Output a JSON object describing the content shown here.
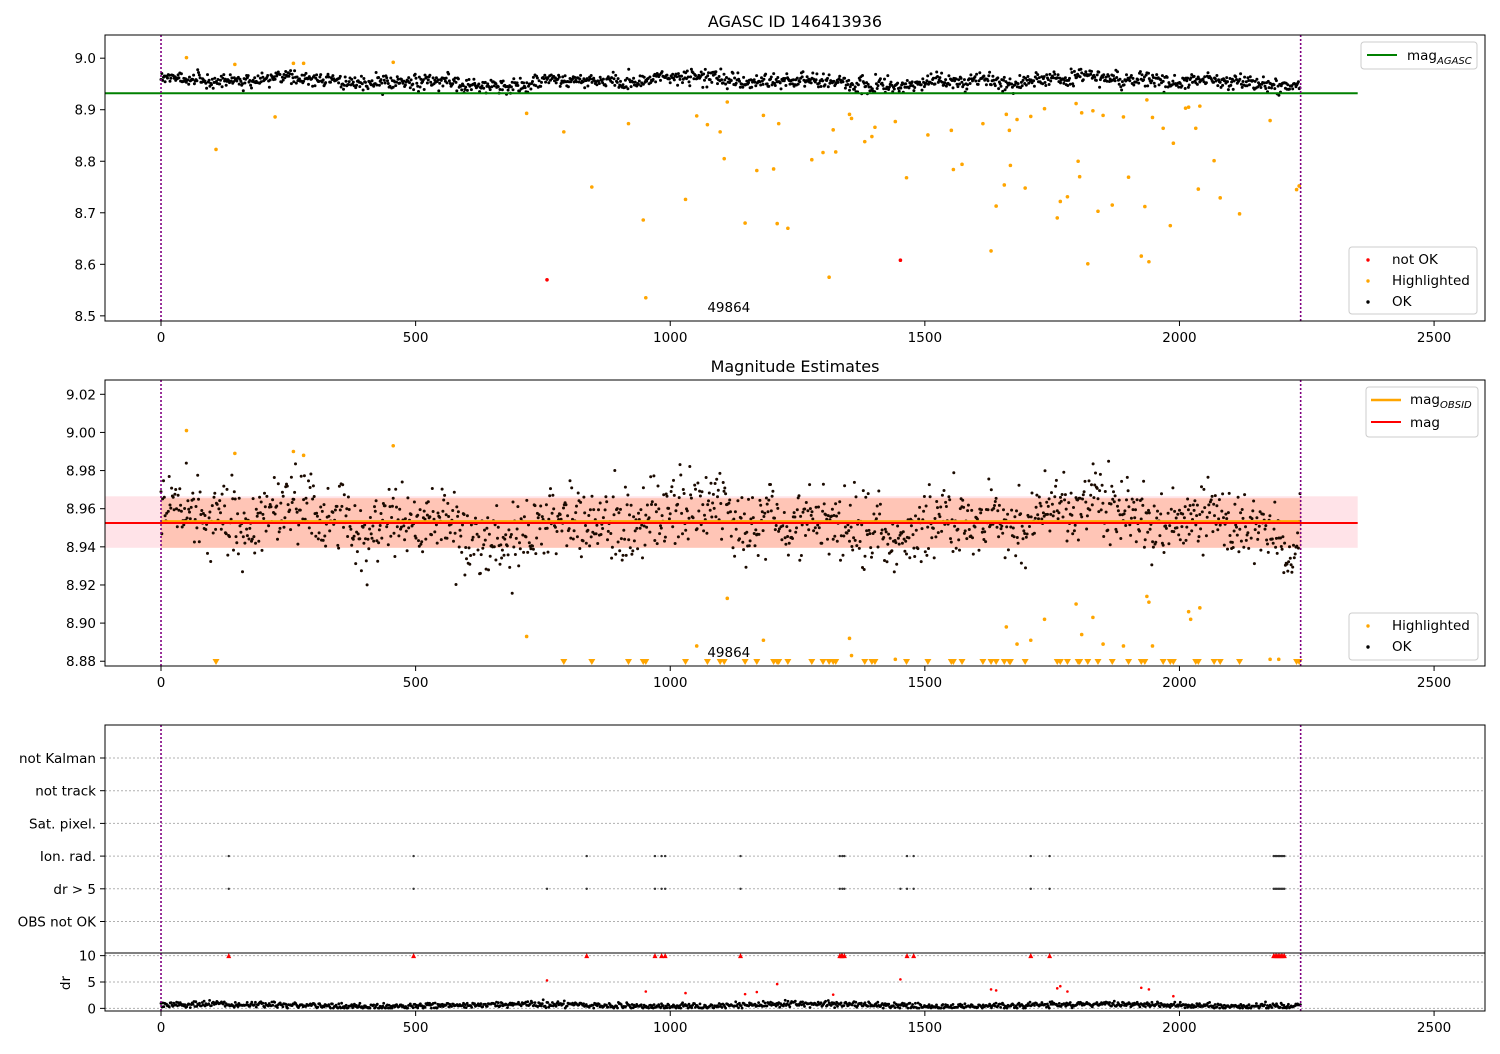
{
  "figure": {
    "top_title": "AGASC ID 146413936",
    "middle_title": "Magnitude Estimates",
    "obsid_label": "49864"
  },
  "colors": {
    "ok": "#000000",
    "highlighted": "#ffa500",
    "not_ok": "#ff0000",
    "mag_agasc": "#008000",
    "mag_obsid": "#ffa500",
    "mag": "#ff0000",
    "band_fill": "#ffc0cb",
    "band_inner": "#ffa07a",
    "boundary": "#800080"
  },
  "legends": {
    "top_lines": [
      {
        "key": "mag_agasc",
        "text": "mag",
        "sub": "AGASC"
      }
    ],
    "top_points": [
      {
        "key": "not_ok",
        "text": "not OK"
      },
      {
        "key": "highlighted",
        "text": "Highlighted"
      },
      {
        "key": "ok",
        "text": "OK"
      }
    ],
    "middle_lines": [
      {
        "key": "mag_obsid",
        "text": "mag",
        "sub": "OBSID"
      },
      {
        "key": "mag",
        "text": "mag",
        "sub": ""
      }
    ],
    "middle_points": [
      {
        "key": "highlighted",
        "text": "Highlighted"
      },
      {
        "key": "ok",
        "text": "OK"
      }
    ]
  },
  "chart_data": [
    {
      "type": "scatter",
      "title": "AGASC ID 146413936",
      "xlim": [
        -110,
        2600
      ],
      "ylim": [
        8.49,
        9.045
      ],
      "xticks": [
        0,
        500,
        1000,
        1500,
        2000,
        2500
      ],
      "yticks": [
        8.5,
        8.6,
        8.7,
        8.8,
        8.9,
        9.0
      ],
      "tick_decimals": 1,
      "obsid_boundaries": [
        0,
        2238
      ],
      "obsid_annotation": {
        "text": "49864",
        "x": 1115
      },
      "ok_band": {
        "range": [
          0,
          2238
        ],
        "center": 8.955,
        "amplitude": 0.015,
        "noise": 0.007
      },
      "reference_lines": [
        {
          "name": "mag_AGASC",
          "y": 8.932,
          "x": [
            -110,
            2350
          ],
          "color": "#008000"
        }
      ],
      "highlighted_points": [
        [
          50,
          9.001
        ],
        [
          108,
          8.823
        ],
        [
          145,
          8.988
        ],
        [
          224,
          8.886
        ],
        [
          260,
          8.99
        ],
        [
          280,
          8.99
        ],
        [
          456,
          8.992
        ],
        [
          718,
          8.893
        ],
        [
          791,
          8.857
        ],
        [
          846,
          8.75
        ],
        [
          918,
          8.873
        ],
        [
          947,
          8.686
        ],
        [
          952,
          8.535
        ],
        [
          1030,
          8.726
        ],
        [
          1052,
          8.888
        ],
        [
          1073,
          8.871
        ],
        [
          1098,
          8.857
        ],
        [
          1106,
          8.805
        ],
        [
          1112,
          8.915
        ],
        [
          1147,
          8.68
        ],
        [
          1170,
          8.782
        ],
        [
          1183,
          8.889
        ],
        [
          1203,
          8.785
        ],
        [
          1210,
          8.679
        ],
        [
          1213,
          8.873
        ],
        [
          1231,
          8.67
        ],
        [
          1278,
          8.803
        ],
        [
          1300,
          8.817
        ],
        [
          1312,
          8.575
        ],
        [
          1320,
          8.861
        ],
        [
          1325,
          8.818
        ],
        [
          1352,
          8.891
        ],
        [
          1356,
          8.883
        ],
        [
          1382,
          8.838
        ],
        [
          1396,
          8.848
        ],
        [
          1402,
          8.866
        ],
        [
          1442,
          8.877
        ],
        [
          1464,
          8.768
        ],
        [
          1506,
          8.851
        ],
        [
          1552,
          8.86
        ],
        [
          1556,
          8.784
        ],
        [
          1573,
          8.794
        ],
        [
          1614,
          8.873
        ],
        [
          1630,
          8.626
        ],
        [
          1640,
          8.713
        ],
        [
          1656,
          8.754
        ],
        [
          1660,
          8.891
        ],
        [
          1666,
          8.86
        ],
        [
          1668,
          8.792
        ],
        [
          1681,
          8.881
        ],
        [
          1697,
          8.748
        ],
        [
          1708,
          8.887
        ],
        [
          1735,
          8.902
        ],
        [
          1760,
          8.69
        ],
        [
          1766,
          8.722
        ],
        [
          1780,
          8.731
        ],
        [
          1797,
          8.912
        ],
        [
          1801,
          8.8
        ],
        [
          1804,
          8.77
        ],
        [
          1808,
          8.894
        ],
        [
          1820,
          8.601
        ],
        [
          1830,
          8.898
        ],
        [
          1840,
          8.703
        ],
        [
          1850,
          8.889
        ],
        [
          1868,
          8.715
        ],
        [
          1890,
          8.886
        ],
        [
          1900,
          8.769
        ],
        [
          1925,
          8.616
        ],
        [
          1932,
          8.712
        ],
        [
          1936,
          8.919
        ],
        [
          1940,
          8.605
        ],
        [
          1947,
          8.885
        ],
        [
          1968,
          8.864
        ],
        [
          1982,
          8.675
        ],
        [
          1988,
          8.835
        ],
        [
          2012,
          8.903
        ],
        [
          2018,
          8.905
        ],
        [
          2032,
          8.864
        ],
        [
          2037,
          8.746
        ],
        [
          2040,
          8.907
        ],
        [
          2068,
          8.801
        ],
        [
          2080,
          8.729
        ],
        [
          2118,
          8.698
        ],
        [
          2178,
          8.879
        ],
        [
          2230,
          8.745
        ],
        [
          2235,
          8.752
        ]
      ],
      "not_ok_points": [
        [
          758,
          8.57
        ],
        [
          1452,
          8.608
        ]
      ]
    },
    {
      "type": "scatter",
      "title": "Magnitude Estimates",
      "xlim": [
        -110,
        2600
      ],
      "ylim": [
        8.8775,
        9.0275
      ],
      "xticks": [
        0,
        500,
        1000,
        1500,
        2000,
        2500
      ],
      "yticks": [
        8.88,
        8.9,
        8.92,
        8.94,
        8.96,
        8.98,
        9.0,
        9.02
      ],
      "tick_decimals": 2,
      "obsid_boundaries": [
        0,
        2238
      ],
      "obsid_annotation": {
        "text": "49864",
        "x": 1115
      },
      "band": {
        "x": [
          -110,
          2350
        ],
        "outer": [
          8.9395,
          8.9665
        ],
        "inner": [
          8.9395,
          8.9655
        ]
      },
      "ok_band": {
        "range": [
          0,
          2238
        ],
        "center": 8.953,
        "amplitude": 0.015,
        "noise": 0.009
      },
      "reference_lines": [
        {
          "name": "mag_OBSID",
          "y": 8.9535,
          "x": [
            0,
            2238
          ],
          "color": "#ffa500"
        },
        {
          "name": "mag",
          "y": 8.9525,
          "x": [
            -110,
            2350
          ],
          "color": "#ff0000"
        }
      ],
      "highlighted_points": [
        [
          50,
          9.001
        ],
        [
          145,
          8.989
        ],
        [
          260,
          8.99
        ],
        [
          280,
          8.988
        ],
        [
          456,
          8.993
        ],
        [
          718,
          8.893
        ],
        [
          1052,
          8.888
        ],
        [
          1112,
          8.913
        ],
        [
          1183,
          8.891
        ],
        [
          1352,
          8.892
        ],
        [
          1356,
          8.883
        ],
        [
          1442,
          8.881
        ],
        [
          1660,
          8.898
        ],
        [
          1681,
          8.889
        ],
        [
          1708,
          8.891
        ],
        [
          1735,
          8.902
        ],
        [
          1797,
          8.91
        ],
        [
          1808,
          8.894
        ],
        [
          1830,
          8.903
        ],
        [
          1850,
          8.889
        ],
        [
          1890,
          8.888
        ],
        [
          1936,
          8.914
        ],
        [
          1940,
          8.911
        ],
        [
          1947,
          8.888
        ],
        [
          2018,
          8.906
        ],
        [
          2022,
          8.902
        ],
        [
          2040,
          8.908
        ],
        [
          2178,
          8.881
        ],
        [
          2195,
          8.881
        ]
      ],
      "clipped_highlighted_x": [
        108,
        791,
        846,
        918,
        947,
        952,
        1030,
        1073,
        1098,
        1106,
        1147,
        1170,
        1203,
        1210,
        1213,
        1231,
        1278,
        1300,
        1312,
        1320,
        1325,
        1382,
        1396,
        1402,
        1464,
        1506,
        1552,
        1556,
        1573,
        1614,
        1630,
        1640,
        1656,
        1666,
        1668,
        1697,
        1760,
        1766,
        1780,
        1801,
        1804,
        1820,
        1840,
        1868,
        1900,
        1925,
        1932,
        1968,
        1982,
        1988,
        2032,
        2037,
        2068,
        2080,
        2118,
        2230,
        2235
      ]
    },
    {
      "type": "scatter",
      "title": "",
      "xlim": [
        -110,
        2600
      ],
      "obsid_boundaries": [
        0,
        2238
      ],
      "category_rows": [
        "not Kalman",
        "not track",
        "Sat. pixel.",
        "Ion. rad.",
        "dr > 5",
        "OBS not OK"
      ],
      "flags": {
        "Ion. rad.": [
          133,
          496,
          836,
          970,
          983,
          990,
          1138,
          1333,
          1338,
          1342,
          1465,
          1478,
          1708,
          1745,
          2185,
          2188,
          2191,
          2194,
          2197,
          2200,
          2203,
          2206
        ],
        "dr > 5": [
          133,
          496,
          758,
          836,
          970,
          983,
          990,
          1138,
          1333,
          1338,
          1342,
          1452,
          1465,
          1478,
          1708,
          1745,
          2185,
          2188,
          2191,
          2194,
          2197,
          2200,
          2203,
          2206
        ],
        "not Kalman": [],
        "not track": [],
        "Sat. pixel.": [],
        "OBS not OK": []
      },
      "dr": {
        "ylabel": "dr",
        "yticks": [
          0,
          5,
          10
        ],
        "ylim": [
          -0.5,
          10.5
        ],
        "ok_range": [
          0,
          2238
        ],
        "ok_level": 0.6,
        "ok_noise": 0.5,
        "clipped_at_10_x": [
          133,
          496,
          836,
          970,
          983,
          990,
          1138,
          1333,
          1336,
          1338,
          1342,
          1465,
          1478,
          1708,
          1745,
          2185,
          2188,
          2191,
          2194,
          2197,
          2200,
          2203,
          2206
        ],
        "red_points": [
          [
            758,
            5.3
          ],
          [
            952,
            3.2
          ],
          [
            1030,
            2.9
          ],
          [
            1147,
            2.7
          ],
          [
            1170,
            3.1
          ],
          [
            1210,
            4.6
          ],
          [
            1320,
            2.6
          ],
          [
            1452,
            5.5
          ],
          [
            1630,
            3.6
          ],
          [
            1640,
            3.4
          ],
          [
            1760,
            3.8
          ],
          [
            1766,
            4.2
          ],
          [
            1780,
            3.2
          ],
          [
            1925,
            3.9
          ],
          [
            1940,
            3.6
          ],
          [
            1988,
            2.3
          ]
        ]
      }
    }
  ]
}
